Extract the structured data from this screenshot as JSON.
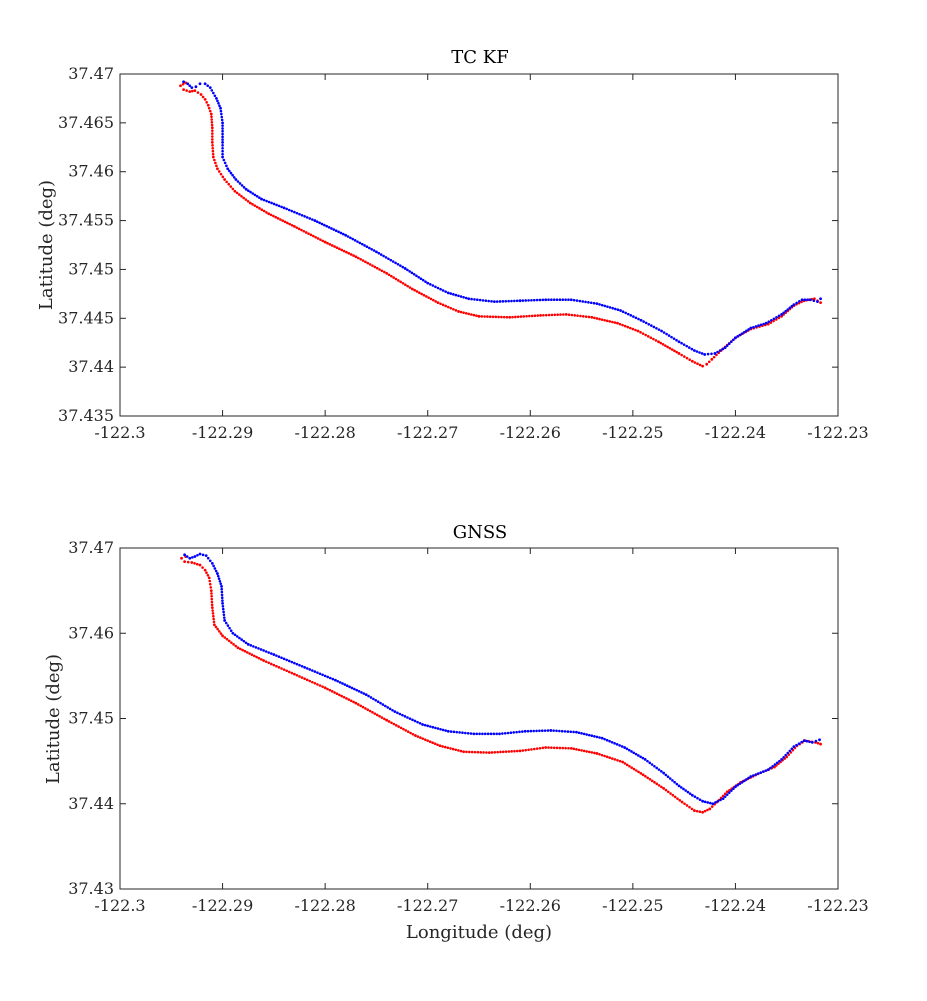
{
  "colors": {
    "truth": "#ff0000",
    "estimate": "#0000ff",
    "axis": "#262626"
  },
  "chart_data": [
    {
      "type": "scatter",
      "title": "TC KF",
      "xlabel": "",
      "ylabel": "Latitude (deg)",
      "xlim": [
        -122.3,
        -122.23
      ],
      "ylim": [
        37.435,
        37.47
      ],
      "xticks": [
        -122.3,
        -122.29,
        -122.28,
        -122.27,
        -122.26,
        -122.25,
        -122.24,
        -122.23
      ],
      "xtick_labels": [
        "-122.3",
        "-122.29",
        "-122.28",
        "-122.27",
        "-122.26",
        "-122.25",
        "-122.24",
        "-122.23"
      ],
      "yticks": [
        37.435,
        37.44,
        37.445,
        37.45,
        37.455,
        37.46,
        37.465,
        37.47
      ],
      "ytick_labels": [
        "37.435",
        "37.44",
        "37.445",
        "37.45",
        "37.455",
        "37.46",
        "37.465",
        "37.47"
      ],
      "grid": false,
      "series": [
        {
          "color": "#ff0000",
          "points": [
            [
              -122.2936,
              37.4691
            ],
            [
              -122.2941,
              37.4688
            ],
            [
              -122.2938,
              37.4684
            ],
            [
              -122.2932,
              37.4682
            ],
            [
              -122.2927,
              37.4683
            ],
            [
              -122.2921,
              37.4679
            ],
            [
              -122.2917,
              37.4674
            ],
            [
              -122.2914,
              37.4668
            ],
            [
              -122.2911,
              37.4659
            ],
            [
              -122.291,
              37.4645
            ],
            [
              -122.291,
              37.463
            ],
            [
              -122.2909,
              37.4615
            ],
            [
              -122.2905,
              37.4603
            ],
            [
              -122.2898,
              37.4592
            ],
            [
              -122.2888,
              37.458
            ],
            [
              -122.2873,
              37.4568
            ],
            [
              -122.2855,
              37.4557
            ],
            [
              -122.283,
              37.4544
            ],
            [
              -122.28,
              37.4528
            ],
            [
              -122.277,
              37.4513
            ],
            [
              -122.274,
              37.4496
            ],
            [
              -122.2715,
              37.448
            ],
            [
              -122.269,
              37.4466
            ],
            [
              -122.267,
              37.4457
            ],
            [
              -122.265,
              37.4452
            ],
            [
              -122.262,
              37.4451
            ],
            [
              -122.259,
              37.4453
            ],
            [
              -122.2565,
              37.4454
            ],
            [
              -122.254,
              37.4451
            ],
            [
              -122.2515,
              37.4445
            ],
            [
              -122.2495,
              37.4437
            ],
            [
              -122.2475,
              37.4426
            ],
            [
              -122.2455,
              37.4414
            ],
            [
              -122.2442,
              37.4406
            ],
            [
              -122.2432,
              37.4401
            ],
            [
              -122.2428,
              37.4403
            ],
            [
              -122.2423,
              37.4408
            ],
            [
              -122.2414,
              37.4417
            ],
            [
              -122.24,
              37.443
            ],
            [
              -122.2385,
              37.4439
            ],
            [
              -122.2368,
              37.4444
            ],
            [
              -122.2355,
              37.4452
            ],
            [
              -122.2343,
              37.4463
            ],
            [
              -122.2333,
              37.4468
            ],
            [
              -122.2323,
              37.447
            ],
            [
              -122.2317,
              37.4466
            ]
          ]
        },
        {
          "color": "#0000ff",
          "points": [
            [
              -122.2938,
              37.4692
            ],
            [
              -122.2934,
              37.469
            ],
            [
              -122.293,
              37.4686
            ],
            [
              -122.2926,
              37.4687
            ],
            [
              -122.2922,
              37.469
            ],
            [
              -122.2917,
              37.469
            ],
            [
              -122.2912,
              37.4686
            ],
            [
              -122.2906,
              37.4675
            ],
            [
              -122.2902,
              37.4665
            ],
            [
              -122.29,
              37.465
            ],
            [
              -122.29,
              37.463
            ],
            [
              -122.29,
              37.4615
            ],
            [
              -122.2895,
              37.4603
            ],
            [
              -122.2887,
              37.4592
            ],
            [
              -122.2877,
              37.4582
            ],
            [
              -122.2862,
              37.4572
            ],
            [
              -122.284,
              37.4563
            ],
            [
              -122.281,
              37.455
            ],
            [
              -122.278,
              37.4535
            ],
            [
              -122.275,
              37.4518
            ],
            [
              -122.2722,
              37.4501
            ],
            [
              -122.27,
              37.4486
            ],
            [
              -122.268,
              37.4476
            ],
            [
              -122.266,
              37.447
            ],
            [
              -122.2635,
              37.4467
            ],
            [
              -122.261,
              37.4468
            ],
            [
              -122.2585,
              37.4469
            ],
            [
              -122.256,
              37.4469
            ],
            [
              -122.2535,
              37.4465
            ],
            [
              -122.2512,
              37.4458
            ],
            [
              -122.2492,
              37.4448
            ],
            [
              -122.2472,
              37.4437
            ],
            [
              -122.2455,
              37.4426
            ],
            [
              -122.244,
              37.4417
            ],
            [
              -122.243,
              37.4413
            ],
            [
              -122.242,
              37.4414
            ],
            [
              -122.241,
              37.442
            ],
            [
              -122.24,
              37.443
            ],
            [
              -122.2385,
              37.444
            ],
            [
              -122.237,
              37.4445
            ],
            [
              -122.2355,
              37.4454
            ],
            [
              -122.2343,
              37.4464
            ],
            [
              -122.2335,
              37.4469
            ],
            [
              -122.2327,
              37.4469
            ],
            [
              -122.232,
              37.4467
            ],
            [
              -122.2317,
              37.447
            ]
          ]
        }
      ]
    },
    {
      "type": "scatter",
      "title": "GNSS",
      "xlabel": "Longitude (deg)",
      "ylabel": "Latitude (deg)",
      "xlim": [
        -122.3,
        -122.23
      ],
      "ylim": [
        37.43,
        37.47
      ],
      "xticks": [
        -122.3,
        -122.29,
        -122.28,
        -122.27,
        -122.26,
        -122.25,
        -122.24,
        -122.23
      ],
      "xtick_labels": [
        "-122.3",
        "-122.29",
        "-122.28",
        "-122.27",
        "-122.26",
        "-122.25",
        "-122.24",
        "-122.23"
      ],
      "yticks": [
        37.43,
        37.44,
        37.45,
        37.46,
        37.47
      ],
      "ytick_labels": [
        "37.43",
        "37.44",
        "37.45",
        "37.46",
        "37.47"
      ],
      "grid": false,
      "series": [
        {
          "color": "#ff0000",
          "points": [
            [
              -122.2936,
              37.469
            ],
            [
              -122.294,
              37.4688
            ],
            [
              -122.2937,
              37.4684
            ],
            [
              -122.293,
              37.4683
            ],
            [
              -122.2922,
              37.468
            ],
            [
              -122.2917,
              37.4674
            ],
            [
              -122.2913,
              37.4665
            ],
            [
              -122.2911,
              37.465
            ],
            [
              -122.291,
              37.463
            ],
            [
              -122.2908,
              37.461
            ],
            [
              -122.29,
              37.4597
            ],
            [
              -122.2885,
              37.4583
            ],
            [
              -122.286,
              37.4568
            ],
            [
              -122.283,
              37.4552
            ],
            [
              -122.28,
              37.4536
            ],
            [
              -122.277,
              37.4518
            ],
            [
              -122.274,
              37.4498
            ],
            [
              -122.2712,
              37.448
            ],
            [
              -122.2688,
              37.4468
            ],
            [
              -122.2665,
              37.4461
            ],
            [
              -122.264,
              37.446
            ],
            [
              -122.261,
              37.4462
            ],
            [
              -122.2585,
              37.4466
            ],
            [
              -122.256,
              37.4465
            ],
            [
              -122.2535,
              37.4459
            ],
            [
              -122.251,
              37.4449
            ],
            [
              -122.249,
              37.4434
            ],
            [
              -122.247,
              37.4418
            ],
            [
              -122.2452,
              37.4402
            ],
            [
              -122.244,
              37.4392
            ],
            [
              -122.2432,
              37.439
            ],
            [
              -122.2425,
              37.4394
            ],
            [
              -122.2418,
              37.4402
            ],
            [
              -122.2408,
              37.4414
            ],
            [
              -122.2395,
              37.4425
            ],
            [
              -122.2378,
              37.4435
            ],
            [
              -122.2362,
              37.4443
            ],
            [
              -122.235,
              37.4455
            ],
            [
              -122.234,
              37.4468
            ],
            [
              -122.2332,
              37.4474
            ],
            [
              -122.2322,
              37.4472
            ],
            [
              -122.2317,
              37.447
            ]
          ]
        },
        {
          "color": "#0000ff",
          "points": [
            [
              -122.2937,
              37.4692
            ],
            [
              -122.2932,
              37.4688
            ],
            [
              -122.2927,
              37.469
            ],
            [
              -122.2922,
              37.4693
            ],
            [
              -122.2916,
              37.4691
            ],
            [
              -122.291,
              37.4682
            ],
            [
              -122.2905,
              37.467
            ],
            [
              -122.2901,
              37.4655
            ],
            [
              -122.29,
              37.4635
            ],
            [
              -122.2898,
              37.4615
            ],
            [
              -122.289,
              37.46
            ],
            [
              -122.2875,
              37.4587
            ],
            [
              -122.285,
              37.4575
            ],
            [
              -122.282,
              37.456
            ],
            [
              -122.279,
              37.4545
            ],
            [
              -122.276,
              37.4528
            ],
            [
              -122.2732,
              37.4508
            ],
            [
              -122.2705,
              37.4493
            ],
            [
              -122.268,
              37.4485
            ],
            [
              -122.2655,
              37.4482
            ],
            [
              -122.263,
              37.4482
            ],
            [
              -122.2605,
              37.4485
            ],
            [
              -122.258,
              37.4486
            ],
            [
              -122.2555,
              37.4484
            ],
            [
              -122.253,
              37.4477
            ],
            [
              -122.2508,
              37.4466
            ],
            [
              -122.2488,
              37.4452
            ],
            [
              -122.247,
              37.4436
            ],
            [
              -122.2455,
              37.4421
            ],
            [
              -122.2442,
              37.441
            ],
            [
              -122.2432,
              37.4403
            ],
            [
              -122.2422,
              37.44
            ],
            [
              -122.2412,
              37.4406
            ],
            [
              -122.24,
              37.442
            ],
            [
              -122.2385,
              37.4432
            ],
            [
              -122.2368,
              37.444
            ],
            [
              -122.2355,
              37.4452
            ],
            [
              -122.2343,
              37.4467
            ],
            [
              -122.2333,
              37.4474
            ],
            [
              -122.2325,
              37.4472
            ],
            [
              -122.2318,
              37.4475
            ]
          ]
        }
      ]
    }
  ]
}
